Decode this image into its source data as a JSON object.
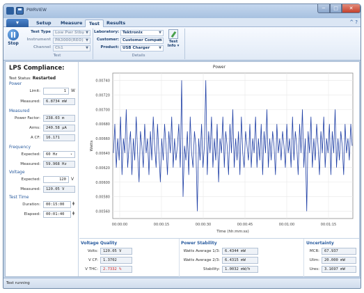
{
  "window": {
    "title": "PWRVIEW",
    "min": "─",
    "max": "□",
    "close": "✕"
  },
  "tabs": [
    "Setup",
    "Measure",
    "Test",
    "Results"
  ],
  "app_menu_glyph": "▾",
  "help": "^ ?",
  "ribbon": {
    "stop_label": "Stop",
    "test_type_label": "Test Type",
    "test_type_value": "Low Pwr Stby",
    "instrument_label": "Instrument",
    "instrument_value": "PA3000(REO)",
    "channel_label": "Channel",
    "channel_value": "Ch1",
    "group_test": "Test",
    "laboratory_label": "Laboratory:",
    "laboratory_value": "Tektronix",
    "customer_label": "Customer:",
    "customer_value": "Customer Compan",
    "product_label": "Product:",
    "product_value": "USB Charger",
    "group_details": "Details",
    "test_info_label": "Test Info",
    "test_info_arrow": "▾"
  },
  "left_panel": {
    "title": "LPS Compliance:",
    "test_status_label": "Test Status:",
    "test_status_value": "Restarted",
    "power_section": "Power",
    "limit_label": "Limit:",
    "limit_value": "1",
    "limit_unit": "W",
    "measured_label": "Measured:",
    "measured_power": "6.8734 mW",
    "measured_section": "Measured",
    "power_factor_label": "Power Factor:",
    "power_factor_value": "238.03 m",
    "arms_label": "Arms:",
    "arms_value": "240.58 µA",
    "acf_label": "A CF:",
    "acf_value": "16.171",
    "frequency_section": "Frequency",
    "expected_label": "Expected:",
    "expected_freq": "60 Hz",
    "measured_freq": "59.968 Hz",
    "voltage_section": "Voltage",
    "expected_voltage": "120",
    "voltage_unit": "V",
    "measured_voltage": "120.05 V",
    "testtime_section": "Test Time",
    "duration_label": "Duration:",
    "duration_value": "00:15:00",
    "elapsed_label": "Elapsed:",
    "elapsed_value": "00:01:40"
  },
  "chart_data": {
    "type": "line",
    "title": "Power",
    "xlabel": "Time (hh:mm:ss)",
    "ylabel": "Watts",
    "ylim": [
      0.0055,
      0.0075
    ],
    "xlim": [
      0,
      100
    ],
    "yticks": [
      "0.00560",
      "0.00580",
      "0.00600",
      "0.00620",
      "0.00640",
      "0.00660",
      "0.00680",
      "0.00700",
      "0.00720",
      "0.00740"
    ],
    "xticks": [
      "00:00:00",
      "00:00:15",
      "00:00:30",
      "00:00:45",
      "00:01:00",
      "00:01:15",
      "00:01:30"
    ],
    "color": "#1f3fa5",
    "series": [
      {
        "values": [
          0.0064,
          0.0068,
          0.0062,
          0.0066,
          0.0063,
          0.0069,
          0.0061,
          0.0066,
          0.0064,
          0.007,
          0.0062,
          0.0065,
          0.0067,
          0.0061,
          0.0066,
          0.0063,
          0.0069,
          0.0064,
          0.006,
          0.0067,
          0.0065,
          0.0062,
          0.0068,
          0.0064,
          0.0066,
          0.0061,
          0.0067,
          0.0063,
          0.0069,
          0.0065,
          0.0062,
          0.0068,
          0.0064,
          0.006,
          0.0066,
          0.0063,
          0.0068,
          0.0065,
          0.0061,
          0.0067,
          0.0064,
          0.0069,
          0.0062,
          0.0066,
          0.0063,
          0.0065,
          0.0068,
          0.0062,
          0.0074,
          0.0058,
          0.0065,
          0.0063,
          0.0067,
          0.0061,
          0.0069,
          0.0064,
          0.0062,
          0.0067,
          0.0065,
          0.0056,
          0.0066,
          0.0063,
          0.0068,
          0.0062,
          0.0065,
          0.0074,
          0.0061,
          0.0067,
          0.0064,
          0.0069,
          0.0062,
          0.0066,
          0.0063,
          0.0068,
          0.006,
          0.0066,
          0.0064,
          0.0069,
          0.0062,
          0.0067,
          0.0065,
          0.0061,
          0.0068,
          0.0064,
          0.007,
          0.0062,
          0.0066,
          0.0063,
          0.0067,
          0.0061,
          0.0069,
          0.0064,
          0.0062,
          0.0067,
          0.0065,
          0.0063,
          0.0068,
          0.0062,
          0.0066,
          0.0064,
          0.0069,
          0.0062,
          0.0066,
          0.0063,
          0.0068,
          0.0061,
          0.0067,
          0.0064,
          0.007,
          0.0062,
          0.0066,
          0.0063,
          0.0067,
          0.0065,
          0.0061,
          0.0068,
          0.0064,
          0.0066,
          0.0063,
          0.0067,
          0.0065,
          0.0062,
          0.0068,
          0.0064,
          0.0066,
          0.0062,
          0.0069,
          0.0063,
          0.0067,
          0.0065,
          0.0061,
          0.0068,
          0.0064,
          0.007,
          0.0062,
          0.0066,
          0.0056,
          0.0067,
          0.0064,
          0.0069,
          0.0062,
          0.0066,
          0.0063,
          0.0068,
          0.0065,
          0.0061,
          0.0067,
          0.0064,
          0.0069,
          0.0062,
          0.0066,
          0.0064,
          0.0068,
          0.0061,
          0.0067,
          0.0064,
          0.007,
          0.0062,
          0.0066,
          0.0063,
          0.0067,
          0.0065,
          0.0061,
          0.0068,
          0.0064,
          0.0066,
          0.0063,
          0.0068,
          0.0065
        ]
      }
    ]
  },
  "voltage_quality": {
    "title": "Voltage Quality",
    "volts_label": "Volts:",
    "volts_value": "120.05 V",
    "vcf_label": "V CF:",
    "vcf_value": "1.3702",
    "vthc_label": "V THC:",
    "vthc_value": "2.7332 %"
  },
  "power_stability": {
    "title": "Power Stability",
    "wa13_label": "Watts Average 1/3:",
    "wa13_value": "6.4344 mW",
    "wa23_label": "Watts Average 2/3:",
    "wa23_value": "6.4315 mW",
    "stability_label": "Stability:",
    "stability_value": "1.0032 mW/h"
  },
  "uncertainty": {
    "title": "Uncertainty",
    "mcr_label": "MCR:",
    "mcr_value": "67.937",
    "ulim_label": "Ulim:",
    "ulim_value": "20.000 mW",
    "ures_label": "Ures:",
    "ures_value": "3.1697 mW"
  },
  "status": {
    "text": "Test running"
  }
}
